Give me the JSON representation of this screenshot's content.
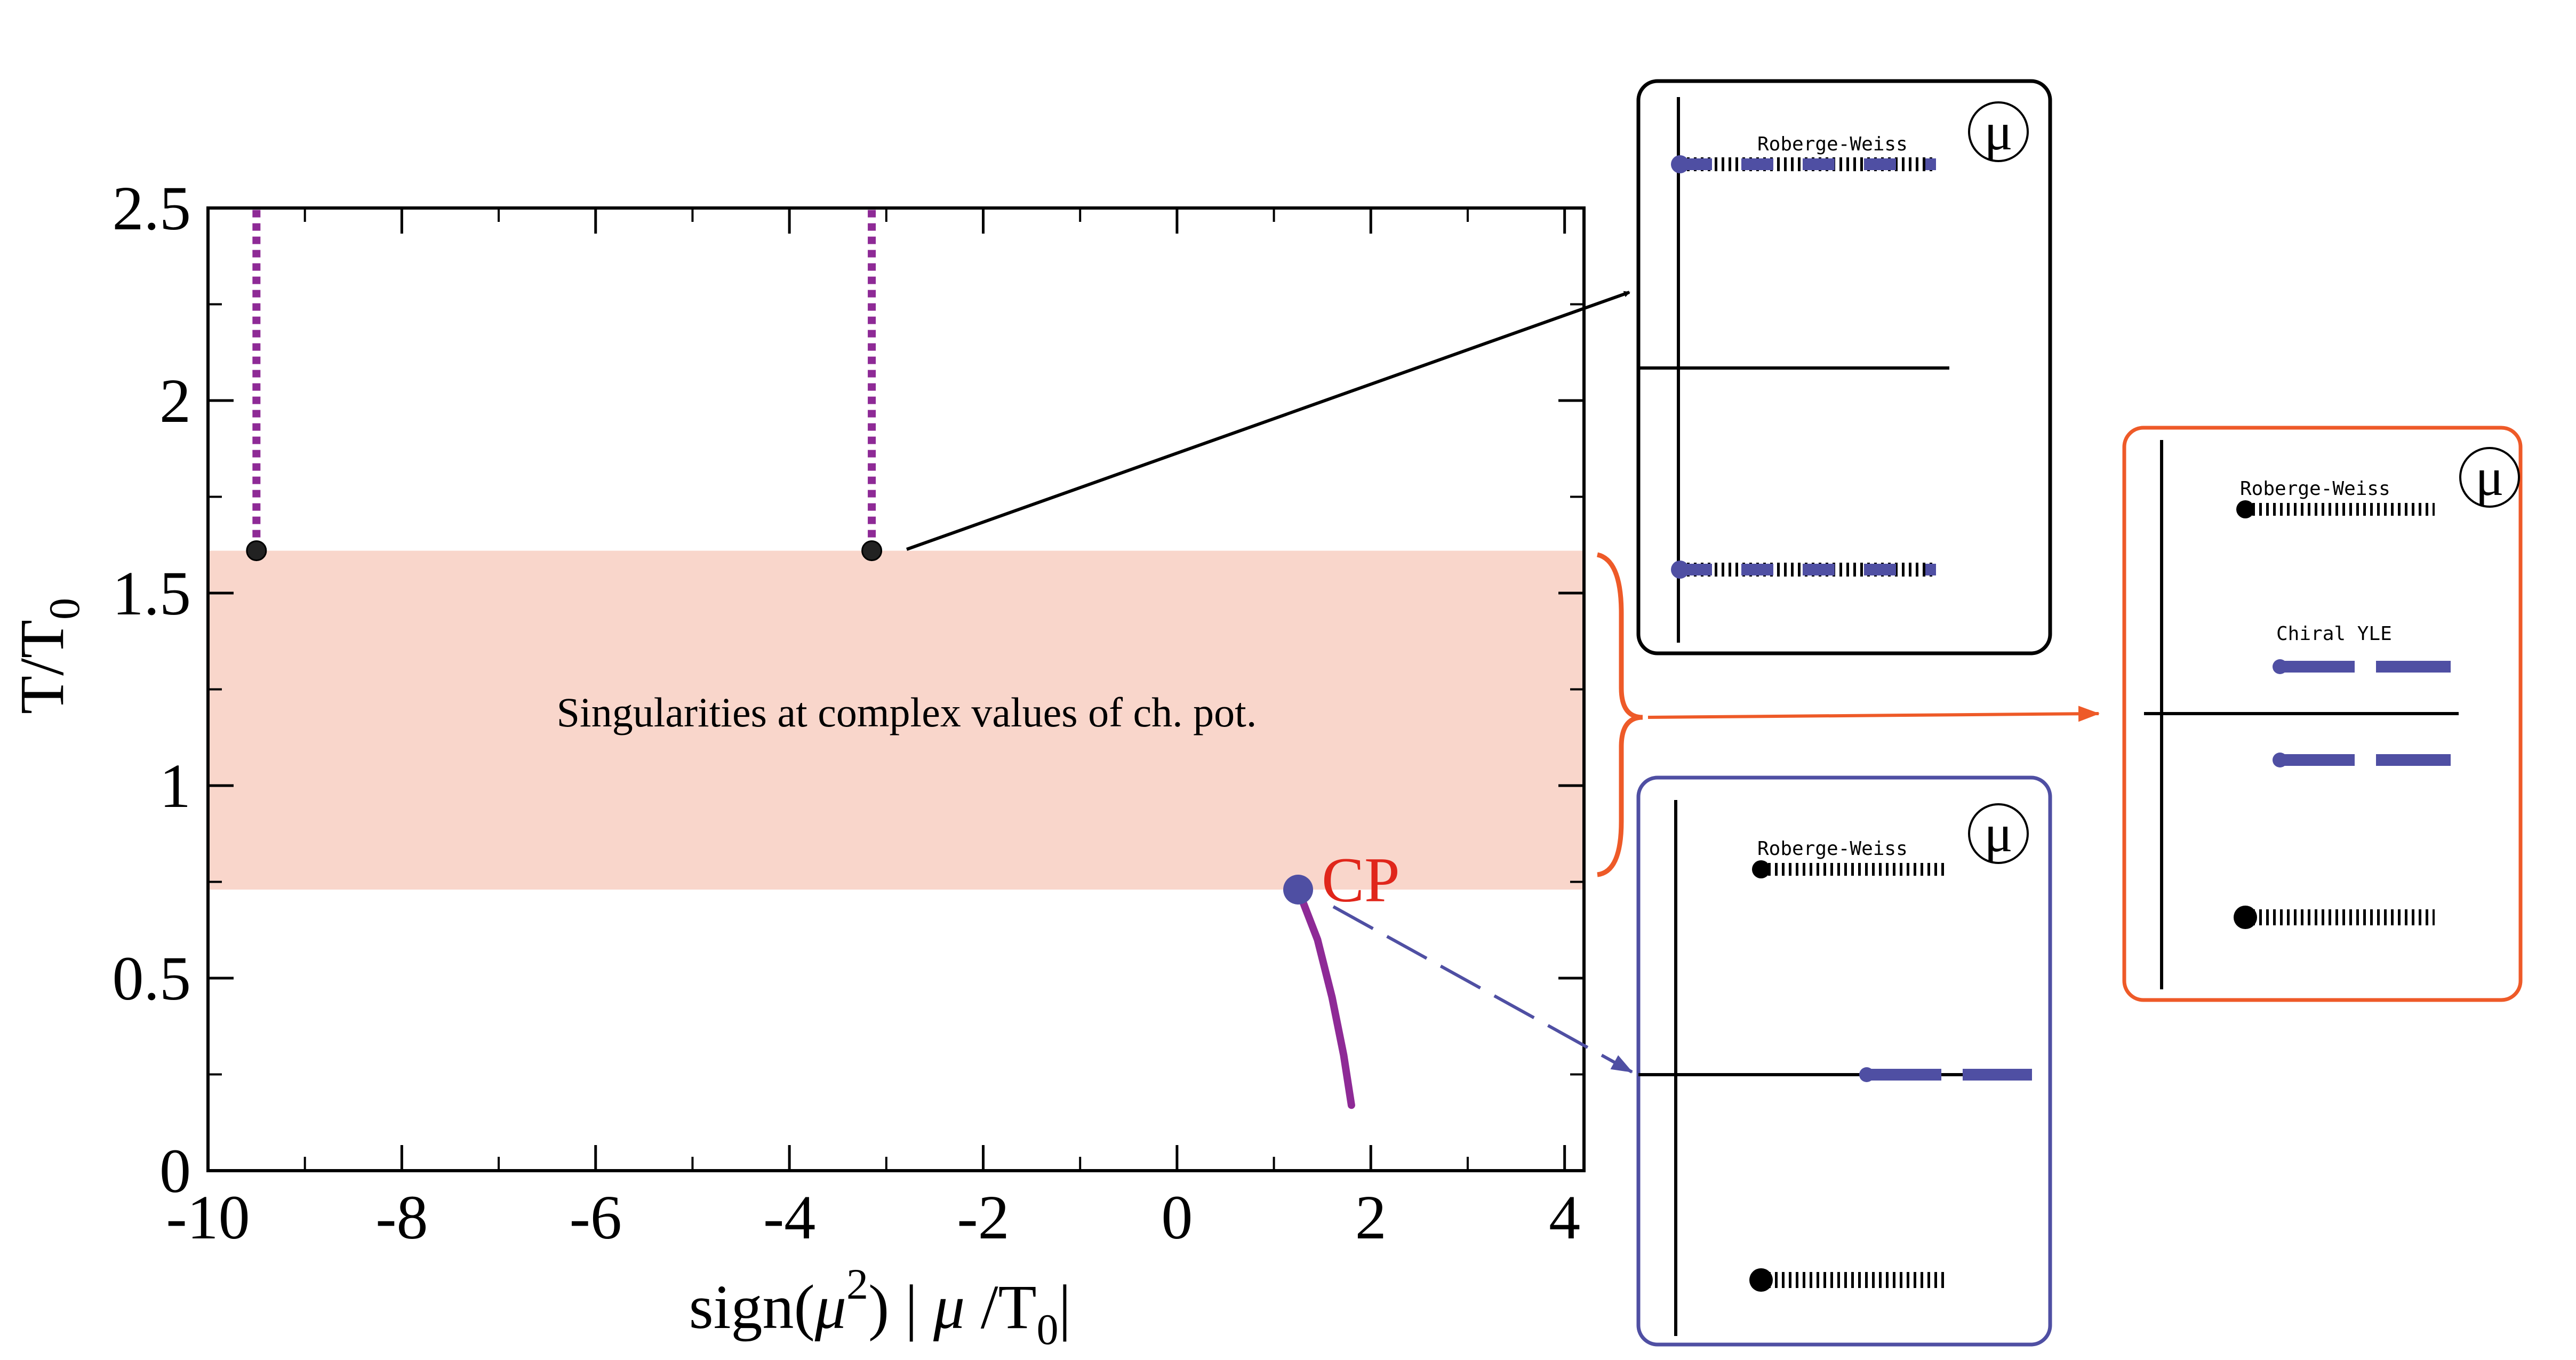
{
  "colors": {
    "band": "#f9d6cb",
    "purple": "#8e2a96",
    "blue": "#4f4fa3",
    "red": "#e0261b",
    "orange": "#ee5a28",
    "black": "#000000"
  },
  "chart_data": {
    "type": "line",
    "xlabel_parts": [
      "sign(",
      "μ",
      "2",
      ") | ",
      "μ",
      " /T",
      "0",
      "|"
    ],
    "ylabel_parts": [
      "T/T",
      "0"
    ],
    "xlim": [
      -10,
      4.2
    ],
    "ylim": [
      0,
      2.5
    ],
    "xticks": [
      -10,
      -8,
      -6,
      -4,
      -2,
      0,
      2,
      4
    ],
    "xtick_labels": [
      "-10",
      "-8",
      "-6",
      "-4",
      "-2",
      "0",
      "2",
      "4"
    ],
    "yticks": [
      0,
      0.5,
      1,
      1.5,
      2,
      2.5
    ],
    "ytick_labels": [
      "0",
      "0.5",
      "1",
      "1.5",
      "2",
      "2.5"
    ],
    "grid": false,
    "band": {
      "y_range": [
        0.73,
        1.61
      ],
      "label": "Singularities at complex values of ch. pot."
    },
    "dotted_lines": [
      {
        "x": -9.5,
        "y_range": [
          1.61,
          2.5
        ]
      },
      {
        "x": -3.15,
        "y_range": [
          1.61,
          2.5
        ]
      }
    ],
    "black_points": [
      {
        "x": -9.5,
        "y": 1.61
      },
      {
        "x": -3.15,
        "y": 1.61
      }
    ],
    "cp_point": {
      "x": 1.25,
      "y": 0.73,
      "label": "CP"
    },
    "transition_line": [
      {
        "x": 1.25,
        "y": 0.73
      },
      {
        "x": 1.45,
        "y": 0.6
      },
      {
        "x": 1.6,
        "y": 0.45
      },
      {
        "x": 1.72,
        "y": 0.3
      },
      {
        "x": 1.8,
        "y": 0.17
      }
    ]
  },
  "insets": {
    "top": {
      "mu_symbol": "μ",
      "label": "Roberge-Weiss"
    },
    "bottom": {
      "mu_symbol": "μ",
      "label": "Roberge-Weiss"
    },
    "right": {
      "mu_symbol": "μ",
      "label_rw": "Roberge-Weiss",
      "label_yle": "Chiral YLE"
    }
  }
}
